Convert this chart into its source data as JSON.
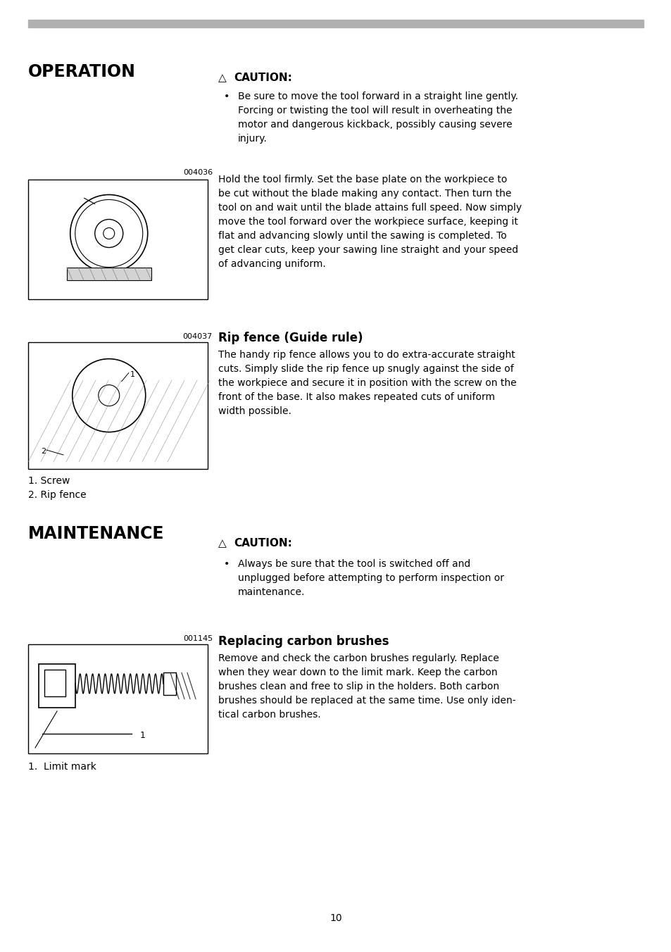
{
  "bg_color": "#ffffff",
  "top_bar_color": "#b0b0b0",
  "page_number": "10",
  "section1_title": "OPERATION",
  "section2_title": "MAINTENANCE",
  "caution_label": "CAUTION:",
  "op_bullet1": [
    "Be sure to move the tool forward in a straight line gently.",
    "Forcing or twisting the tool will result in overheating the",
    "motor and dangerous kickback, possibly causing severe",
    "injury."
  ],
  "op_para": [
    "Hold the tool firmly. Set the base plate on the workpiece to",
    "be cut without the blade making any contact. Then turn the",
    "tool on and wait until the blade attains full speed. Now simply",
    "move the tool forward over the workpiece surface, keeping it",
    "flat and advancing slowly until the sawing is completed. To",
    "get clear cuts, keep your sawing line straight and your speed",
    "of advancing uniform."
  ],
  "fig1_label": "004036",
  "fig2_label": "004037",
  "fig3_label": "001145",
  "rip_fence_title": "Rip fence (Guide rule)",
  "rip_fence_para": [
    "The handy rip fence allows you to do extra-accurate straight",
    "cuts. Simply slide the rip fence up snugly against the side of",
    "the workpiece and secure it in position with the screw on the",
    "front of the base. It also makes repeated cuts of uniform",
    "width possible."
  ],
  "fig2_item1": "1. Screw",
  "fig2_item2": "2. Rip fence",
  "maint_caution_bullet": [
    "Always be sure that the tool is switched off and",
    "unplugged before attempting to perform inspection or",
    "maintenance."
  ],
  "carbon_title": "Replacing carbon brushes",
  "carbon_para": [
    "Remove and check the carbon brushes regularly. Replace",
    "when they wear down to the limit mark. Keep the carbon",
    "brushes clean and free to slip in the holders. Both carbon",
    "brushes should be replaced at the same time. Use only iden-",
    "tical carbon brushes."
  ],
  "fig3_item1": "1.  Limit mark"
}
